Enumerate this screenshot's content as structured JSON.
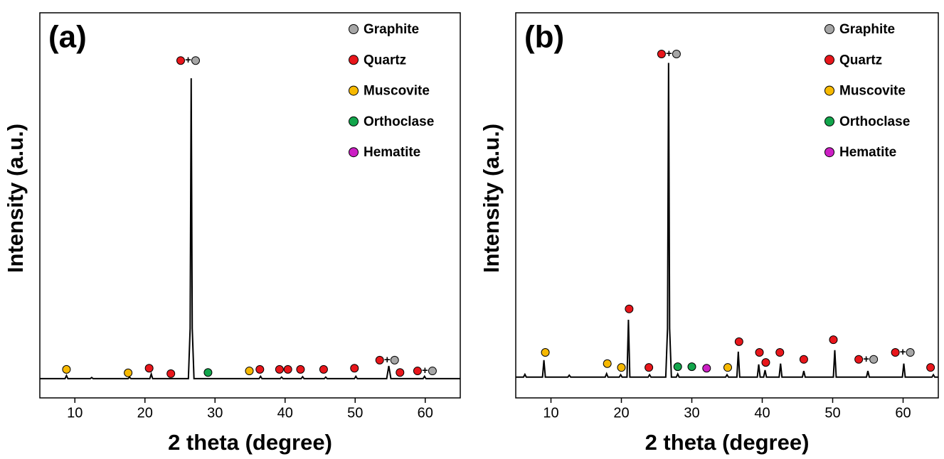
{
  "chart_data": [
    {
      "type": "line",
      "panel_label": "(a)",
      "xlabel": "2 theta (degree)",
      "ylabel": "Intensity (a.u.)",
      "xlim": [
        5,
        65
      ],
      "xticks": [
        10,
        20,
        30,
        40,
        50,
        60
      ],
      "ylim": [
        0,
        100
      ],
      "joiner": "+",
      "x": [
        5,
        8.6,
        8.8,
        9.0,
        12.2,
        12.4,
        12.6,
        17.6,
        17.8,
        18.0,
        20.7,
        20.9,
        21.1,
        26.2,
        26.45,
        26.6,
        26.75,
        27.0,
        36.3,
        36.5,
        36.7,
        39.3,
        39.5,
        39.7,
        42.3,
        42.5,
        42.7,
        45.6,
        45.8,
        46.0,
        49.9,
        50.1,
        50.3,
        54.5,
        54.8,
        55.1,
        59.7,
        59.9,
        60.1,
        65
      ],
      "series": [
        {
          "color": "#000000",
          "values": [
            5,
            5,
            5.8,
            5,
            5,
            5.3,
            5,
            5,
            5.4,
            5,
            5,
            6.2,
            5,
            5,
            18,
            83,
            18,
            5,
            5,
            5.6,
            5,
            5,
            5.4,
            5,
            5,
            5.5,
            5,
            5,
            5.4,
            5,
            5,
            5.6,
            5,
            5,
            8.3,
            5,
            5,
            5.6,
            5,
            5
          ]
        }
      ],
      "phases": [
        {
          "name": "Graphite",
          "color": "#a6a6a6"
        },
        {
          "name": "Quartz",
          "color": "#e8161b"
        },
        {
          "name": "Muscovite",
          "color": "#f7b900"
        },
        {
          "name": "Orthoclase",
          "color": "#12a54b"
        },
        {
          "name": "Hematite",
          "color": "#cc1fc4"
        }
      ],
      "markers": [
        {
          "x": 8.8,
          "y": 7.4,
          "phases": [
            2
          ]
        },
        {
          "x": 17.6,
          "y": 6.5,
          "phases": [
            2
          ]
        },
        {
          "x": 20.6,
          "y": 7.7,
          "phases": [
            1
          ]
        },
        {
          "x": 23.7,
          "y": 6.3,
          "phases": [
            1
          ]
        },
        {
          "x": 25.1,
          "y": 87.6,
          "phases": [
            1,
            0
          ]
        },
        {
          "x": 29.0,
          "y": 6.6,
          "phases": [
            3
          ]
        },
        {
          "x": 34.9,
          "y": 7.0,
          "phases": [
            2
          ]
        },
        {
          "x": 36.4,
          "y": 7.4,
          "phases": [
            1
          ]
        },
        {
          "x": 39.2,
          "y": 7.4,
          "phases": [
            1
          ]
        },
        {
          "x": 40.4,
          "y": 7.4,
          "phases": [
            1
          ]
        },
        {
          "x": 42.2,
          "y": 7.4,
          "phases": [
            1
          ]
        },
        {
          "x": 45.5,
          "y": 7.4,
          "phases": [
            1
          ]
        },
        {
          "x": 49.9,
          "y": 7.7,
          "phases": [
            1
          ]
        },
        {
          "x": 53.5,
          "y": 9.8,
          "phases": [
            1,
            0
          ]
        },
        {
          "x": 56.4,
          "y": 6.6,
          "phases": [
            1
          ]
        },
        {
          "x": 58.9,
          "y": 7.0,
          "phases": [
            1,
            0
          ]
        }
      ]
    },
    {
      "type": "line",
      "panel_label": "(b)",
      "xlabel": "2 theta (degree)",
      "ylabel": "Intensity (a.u.)",
      "xlim": [
        5,
        65
      ],
      "xticks": [
        10,
        20,
        30,
        40,
        50,
        60
      ],
      "ylim": [
        0,
        100
      ],
      "joiner": "+",
      "x": [
        5,
        6.1,
        6.3,
        6.5,
        8.8,
        9.0,
        9.2,
        12.4,
        12.6,
        12.8,
        17.7,
        17.9,
        18.1,
        19.7,
        19.9,
        20.1,
        20.8,
        21.0,
        21.2,
        23.8,
        24.0,
        24.2,
        26.3,
        26.55,
        26.7,
        26.85,
        27.1,
        27.8,
        28.0,
        28.2,
        34.8,
        35.0,
        35.2,
        36.4,
        36.6,
        36.8,
        39.3,
        39.5,
        39.7,
        40.2,
        40.4,
        40.6,
        42.4,
        42.6,
        42.8,
        45.7,
        45.9,
        46.1,
        50.1,
        50.3,
        50.5,
        54.8,
        55.0,
        55.2,
        59.9,
        60.1,
        60.3,
        64.1,
        64.3,
        64.5,
        65
      ],
      "series": [
        {
          "color": "#000000",
          "values": [
            5.4,
            5.4,
            6.1,
            5.4,
            5.4,
            9.8,
            5.4,
            5.4,
            5.9,
            5.4,
            5.4,
            6.3,
            5.4,
            5.4,
            6,
            5.4,
            5.4,
            20.3,
            5.4,
            5.4,
            6,
            5.4,
            5.4,
            18,
            87,
            18,
            5.4,
            5.4,
            6.2,
            5.4,
            5.4,
            6,
            5.4,
            5.4,
            12,
            5.4,
            5.4,
            8.7,
            5.4,
            5.4,
            7.2,
            5.4,
            5.4,
            8.9,
            5.4,
            5.4,
            7,
            5.4,
            5.4,
            12.4,
            5.4,
            5.4,
            7,
            5.4,
            5.4,
            8.9,
            5.4,
            5.4,
            6,
            5.4,
            5.4
          ]
        }
      ],
      "phases": [
        {
          "name": "Graphite",
          "color": "#a6a6a6"
        },
        {
          "name": "Quartz",
          "color": "#e8161b"
        },
        {
          "name": "Muscovite",
          "color": "#f7b900"
        },
        {
          "name": "Orthoclase",
          "color": "#12a54b"
        },
        {
          "name": "Hematite",
          "color": "#cc1fc4"
        }
      ],
      "markers": [
        {
          "x": 9.2,
          "y": 11.8,
          "phases": [
            2
          ]
        },
        {
          "x": 18.0,
          "y": 8.9,
          "phases": [
            2
          ]
        },
        {
          "x": 20.0,
          "y": 7.9,
          "phases": [
            2
          ]
        },
        {
          "x": 21.1,
          "y": 23.1,
          "phases": [
            1
          ]
        },
        {
          "x": 23.9,
          "y": 7.9,
          "phases": [
            1
          ]
        },
        {
          "x": 25.7,
          "y": 89.3,
          "phases": [
            1,
            0
          ]
        },
        {
          "x": 28.0,
          "y": 8.1,
          "phases": [
            3
          ]
        },
        {
          "x": 30.0,
          "y": 8.1,
          "phases": [
            3
          ]
        },
        {
          "x": 32.1,
          "y": 7.7,
          "phases": [
            4
          ]
        },
        {
          "x": 35.1,
          "y": 7.9,
          "phases": [
            2
          ]
        },
        {
          "x": 36.7,
          "y": 14.6,
          "phases": [
            1
          ]
        },
        {
          "x": 39.6,
          "y": 11.8,
          "phases": [
            1
          ]
        },
        {
          "x": 40.5,
          "y": 9.2,
          "phases": [
            1
          ]
        },
        {
          "x": 42.5,
          "y": 11.8,
          "phases": [
            1
          ]
        },
        {
          "x": 45.9,
          "y": 10.0,
          "phases": [
            1
          ]
        },
        {
          "x": 50.1,
          "y": 15.1,
          "phases": [
            1
          ]
        },
        {
          "x": 53.7,
          "y": 10.0,
          "phases": [
            1,
            0
          ]
        },
        {
          "x": 58.9,
          "y": 11.8,
          "phases": [
            1,
            0
          ]
        },
        {
          "x": 63.9,
          "y": 7.9,
          "phases": [
            1
          ]
        }
      ]
    }
  ]
}
